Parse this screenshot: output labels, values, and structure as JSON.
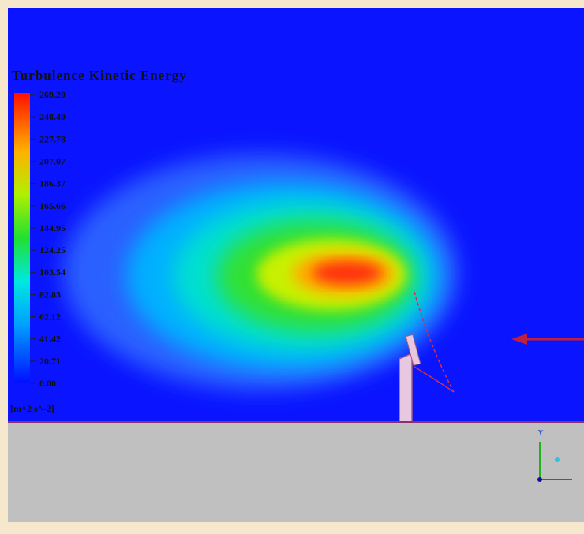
{
  "legend": {
    "title": "Turbulence Kinetic Energy",
    "labels": [
      "269.20",
      "248.49",
      "227.78",
      "207.07",
      "186.37",
      "165.66",
      "144.95",
      "124.25",
      "103.54",
      "82.83",
      "62.12",
      "41.42",
      "20.71",
      "0.00"
    ],
    "unit": "[m^2 s^-2]"
  },
  "triad": {
    "label": "Y"
  }
}
